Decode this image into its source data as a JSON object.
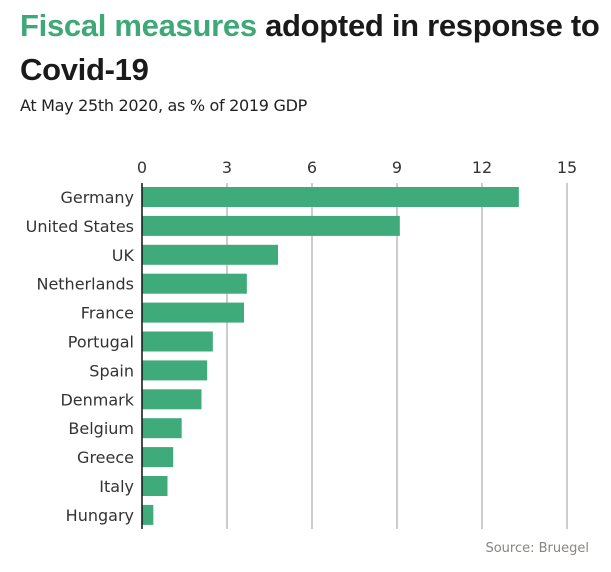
{
  "title": {
    "highlight": "Fiscal measures",
    "rest": " adopted in response to Covid-19"
  },
  "subtitle": "At May 25th 2020, as % of 2019 GDP",
  "source": "Source: Bruegel",
  "colors": {
    "bar": "#3fab7b",
    "title_highlight": "#3fa878",
    "grid": "#9a9a9a",
    "axis": "#111111"
  },
  "chart_data": {
    "type": "bar",
    "orientation": "horizontal",
    "title": "Fiscal measures adopted in response to Covid-19",
    "subtitle": "At May 25th 2020, as % of 2019 GDP",
    "xlabel": "",
    "ylabel": "",
    "xlim": [
      0,
      15
    ],
    "xticks": [
      0,
      3,
      6,
      9,
      12,
      15
    ],
    "tick_position": "top",
    "grid": true,
    "categories": [
      "Germany",
      "United States",
      "UK",
      "Netherlands",
      "France",
      "Portugal",
      "Spain",
      "Denmark",
      "Belgium",
      "Greece",
      "Italy",
      "Hungary"
    ],
    "values": [
      13.3,
      9.1,
      4.8,
      3.7,
      3.6,
      2.5,
      2.3,
      2.1,
      1.4,
      1.1,
      0.9,
      0.4
    ],
    "source": "Source: Bruegel"
  }
}
